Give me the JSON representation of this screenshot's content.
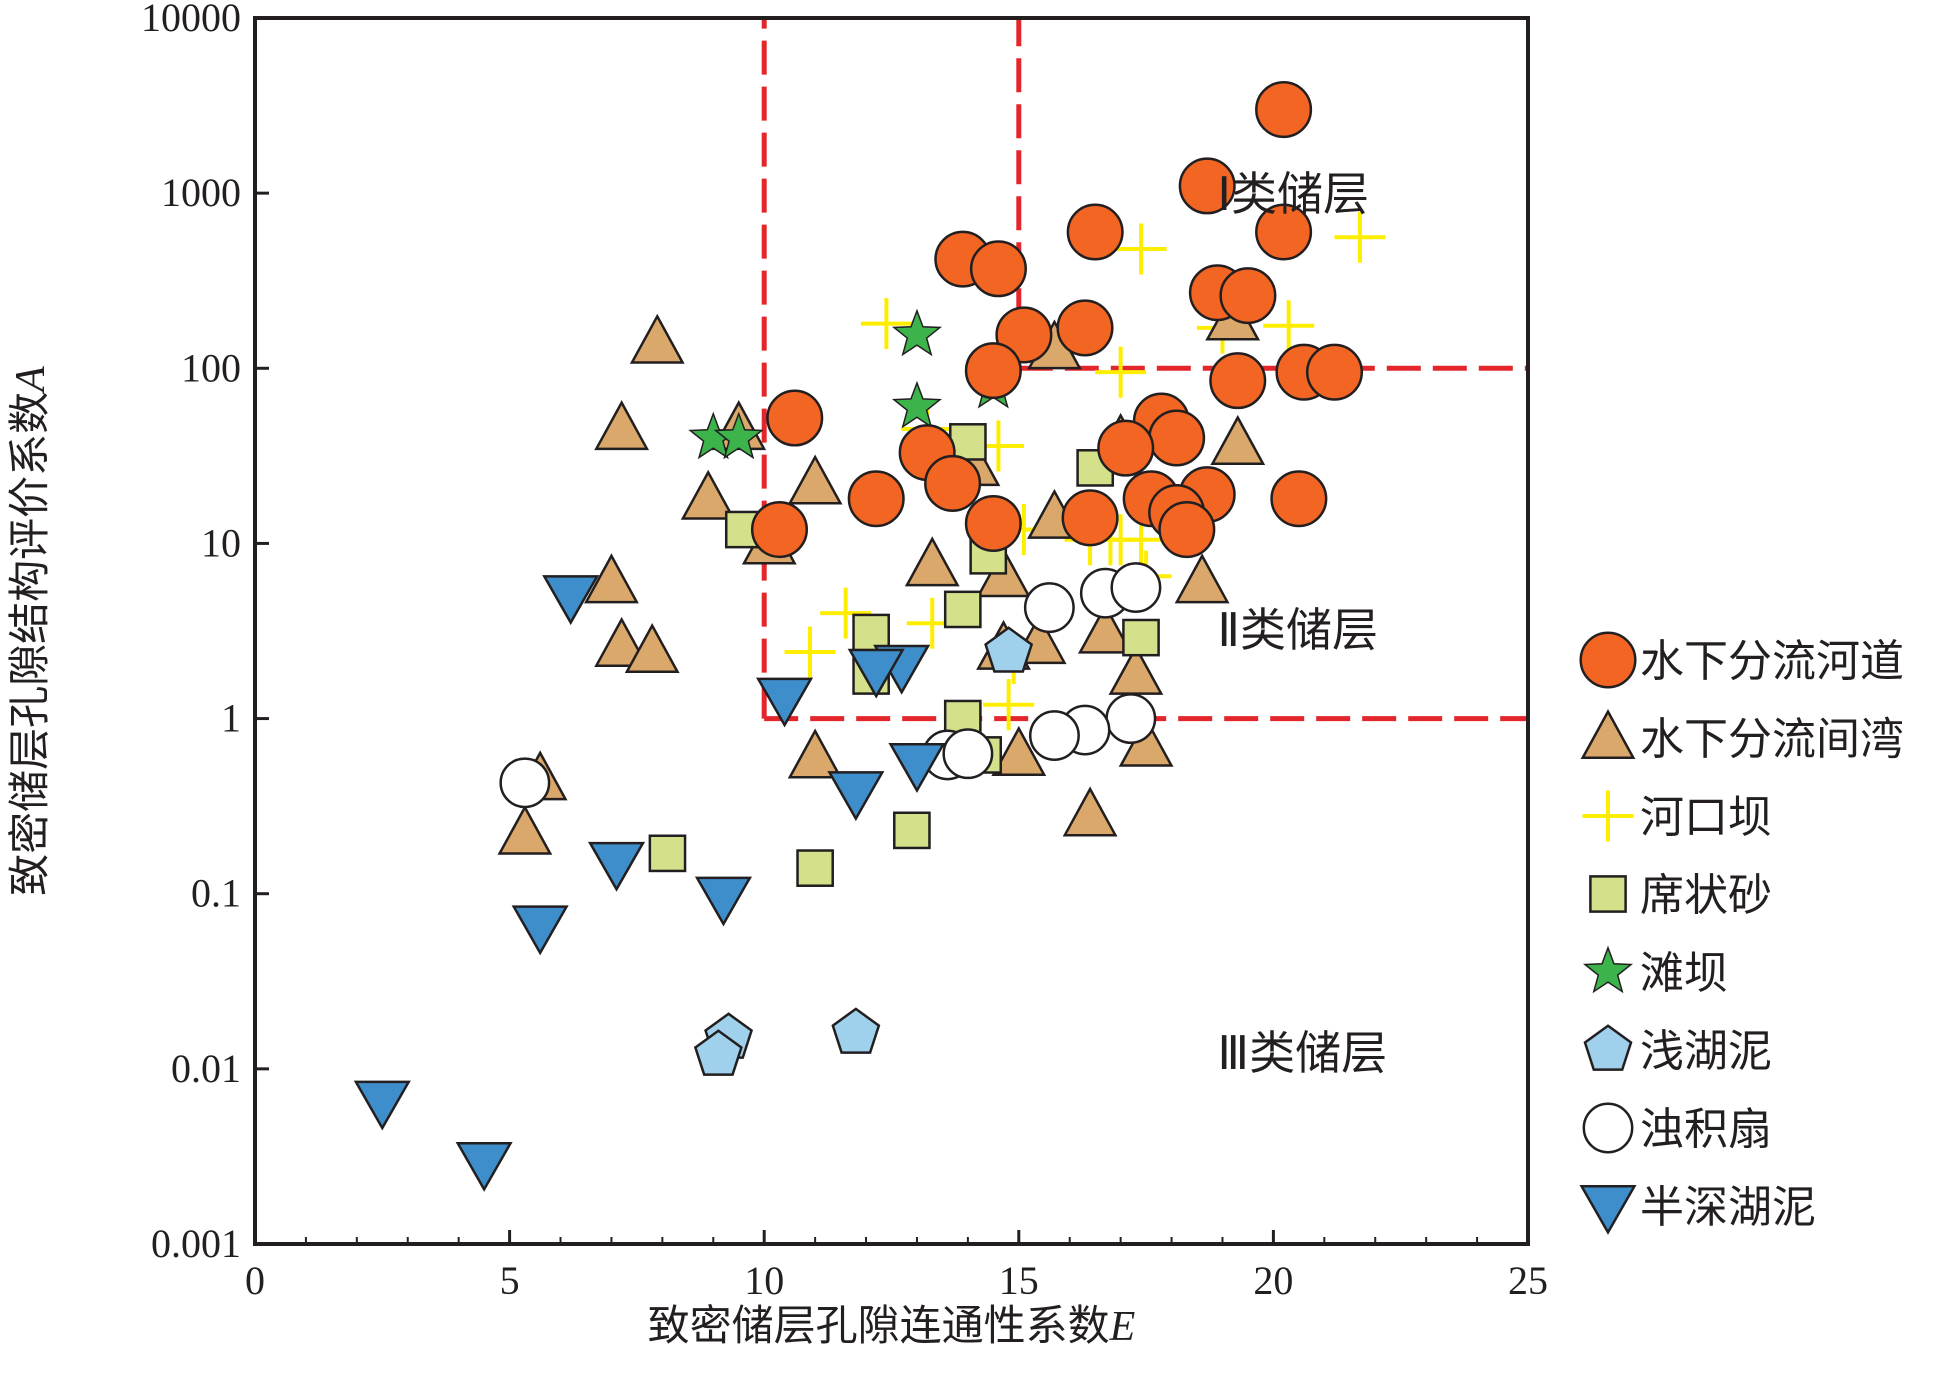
{
  "chart_data": {
    "type": "scatter",
    "xlabel": "致密储层孔隙连通性系数",
    "xlabel_var": "E",
    "ylabel": "致密储层孔隙结构评价系数",
    "ylabel_var": "A",
    "xlim": [
      0,
      25
    ],
    "ylim": [
      0.001,
      10000
    ],
    "y_scale": "log",
    "x_ticks": [
      "0",
      "5",
      "10",
      "15",
      "20",
      "25"
    ],
    "x_tick_values": [
      0,
      5,
      10,
      15,
      20,
      25
    ],
    "y_ticks": [
      "0.001",
      "0.01",
      "0.1",
      "1",
      "10",
      "100",
      "1000",
      "10000"
    ],
    "y_tick_values": [
      0.001,
      0.01,
      0.1,
      1,
      10,
      100,
      1000,
      10000
    ],
    "legend_position": "right",
    "regions": [
      {
        "label": "Ⅰ类储层",
        "x": 18.9,
        "y": 800
      },
      {
        "label": "Ⅱ类储层",
        "x": 18.9,
        "y": 2.6
      },
      {
        "label": "Ⅲ类储层",
        "x": 18.9,
        "y": 0.01
      }
    ],
    "boundaries": [
      {
        "x1": 10,
        "y1": 1,
        "x2": 10,
        "y2": 10000
      },
      {
        "x1": 10,
        "y1": 1,
        "x2": 25,
        "y2": 1
      },
      {
        "x1": 15,
        "y1": 100,
        "x2": 15,
        "y2": 10000
      },
      {
        "x1": 15,
        "y1": 100,
        "x2": 25,
        "y2": 100
      }
    ],
    "boundary_color": "#e3262b",
    "series": [
      {
        "name": "水下分流河道",
        "marker": "circle",
        "fill": "#f26522",
        "stroke": "#231f20",
        "points": [
          [
            20.2,
            3000
          ],
          [
            18.7,
            1100
          ],
          [
            16.5,
            600
          ],
          [
            20.2,
            600
          ],
          [
            13.9,
            420
          ],
          [
            14.6,
            370
          ],
          [
            18.9,
            270
          ],
          [
            19.5,
            260
          ],
          [
            16.3,
            170
          ],
          [
            15.1,
            155
          ],
          [
            14.5,
            97
          ],
          [
            20.6,
            95
          ],
          [
            21.2,
            95
          ],
          [
            19.3,
            85
          ],
          [
            10.6,
            52
          ],
          [
            17.8,
            50
          ],
          [
            18.1,
            40
          ],
          [
            17.1,
            35
          ],
          [
            13.2,
            33
          ],
          [
            13.7,
            22
          ],
          [
            12.2,
            18
          ],
          [
            17.6,
            18
          ],
          [
            20.5,
            18
          ],
          [
            18.7,
            19
          ],
          [
            18.1,
            15
          ],
          [
            16.4,
            14
          ],
          [
            14.5,
            13
          ],
          [
            10.3,
            12
          ],
          [
            18.3,
            12
          ]
        ]
      },
      {
        "name": "水下分流间湾",
        "marker": "triangle",
        "fill": "#d9a86a",
        "stroke": "#231f20",
        "points": [
          [
            7.9,
            140
          ],
          [
            19.2,
            190
          ],
          [
            15.7,
            130
          ],
          [
            7.2,
            45
          ],
          [
            9.5,
            45
          ],
          [
            14.1,
            28
          ],
          [
            17.0,
            38
          ],
          [
            19.3,
            37
          ],
          [
            8.9,
            18
          ],
          [
            11.0,
            22
          ],
          [
            15.7,
            14
          ],
          [
            10.1,
            10
          ],
          [
            13.3,
            7.5
          ],
          [
            14.7,
            6.5
          ],
          [
            7.0,
            6
          ],
          [
            18.6,
            6
          ],
          [
            7.2,
            2.6
          ],
          [
            7.8,
            2.4
          ],
          [
            14.7,
            2.5
          ],
          [
            15.4,
            2.7
          ],
          [
            16.7,
            3.1
          ],
          [
            17.3,
            1.8
          ],
          [
            11.0,
            0.6
          ],
          [
            15.0,
            0.62
          ],
          [
            17.5,
            0.7
          ],
          [
            5.6,
            0.45
          ],
          [
            5.3,
            0.22
          ],
          [
            16.4,
            0.28
          ]
        ]
      },
      {
        "name": "河口坝",
        "marker": "plus",
        "fill": "#ffed00",
        "stroke": "#ffed00",
        "points": [
          [
            21.7,
            560
          ],
          [
            17.4,
            480
          ],
          [
            12.4,
            180
          ],
          [
            19.0,
            170
          ],
          [
            20.3,
            175
          ],
          [
            17.0,
            95
          ],
          [
            13.2,
            45
          ],
          [
            14.6,
            36
          ],
          [
            15.1,
            12
          ],
          [
            16.4,
            10.5
          ],
          [
            17.0,
            10.5
          ],
          [
            17.4,
            10.5
          ],
          [
            16.8,
            10.5
          ],
          [
            17.5,
            6.5
          ],
          [
            11.6,
            4
          ],
          [
            13.3,
            3.5
          ],
          [
            10.9,
            2.4
          ],
          [
            14.9,
            2.2
          ],
          [
            14.8,
            1.2
          ]
        ]
      },
      {
        "name": "席状砂",
        "marker": "square",
        "fill": "#d4e08a",
        "stroke": "#231f20",
        "points": [
          [
            14.0,
            38
          ],
          [
            16.5,
            27
          ],
          [
            9.6,
            12
          ],
          [
            14.4,
            8.5
          ],
          [
            13.9,
            4.2
          ],
          [
            12.1,
            3.1
          ],
          [
            17.4,
            2.9
          ],
          [
            12.1,
            1.75
          ],
          [
            13.9,
            1.0
          ],
          [
            14.3,
            0.62
          ],
          [
            8.1,
            0.17
          ],
          [
            11.0,
            0.14
          ],
          [
            12.9,
            0.23
          ]
        ]
      },
      {
        "name": "滩坝",
        "marker": "star",
        "fill": "#3cb44b",
        "stroke": "#231f20",
        "points": [
          [
            13.0,
            155
          ],
          [
            13.0,
            60
          ],
          [
            14.5,
            78
          ],
          [
            9.0,
            40
          ],
          [
            9.5,
            40
          ]
        ]
      },
      {
        "name": "浅湖泥",
        "marker": "pentagon",
        "fill": "#9fd0ec",
        "stroke": "#231f20",
        "points": [
          [
            9.3,
            0.015
          ],
          [
            9.1,
            0.012
          ],
          [
            11.8,
            0.016
          ],
          [
            14.8,
            2.4
          ]
        ]
      },
      {
        "name": "浊积扇",
        "marker": "open-circle",
        "fill": "#ffffff",
        "stroke": "#231f20",
        "points": [
          [
            16.7,
            5.2
          ],
          [
            17.3,
            5.6
          ],
          [
            15.6,
            4.3
          ],
          [
            17.2,
            1.0
          ],
          [
            16.3,
            0.86
          ],
          [
            15.7,
            0.8
          ],
          [
            13.6,
            0.62
          ],
          [
            14.0,
            0.63
          ],
          [
            5.3,
            0.43
          ]
        ]
      },
      {
        "name": "半深湖泥",
        "marker": "down-triangle",
        "fill": "#3e8ecb",
        "stroke": "#231f20",
        "points": [
          [
            6.2,
            5.0
          ],
          [
            12.7,
            2.0
          ],
          [
            12.2,
            1.9
          ],
          [
            10.4,
            1.3
          ],
          [
            13.0,
            0.55
          ],
          [
            11.8,
            0.38
          ],
          [
            7.1,
            0.15
          ],
          [
            9.2,
            0.095
          ],
          [
            5.6,
            0.065
          ],
          [
            2.5,
            0.0065
          ],
          [
            4.5,
            0.0029
          ]
        ]
      }
    ]
  }
}
